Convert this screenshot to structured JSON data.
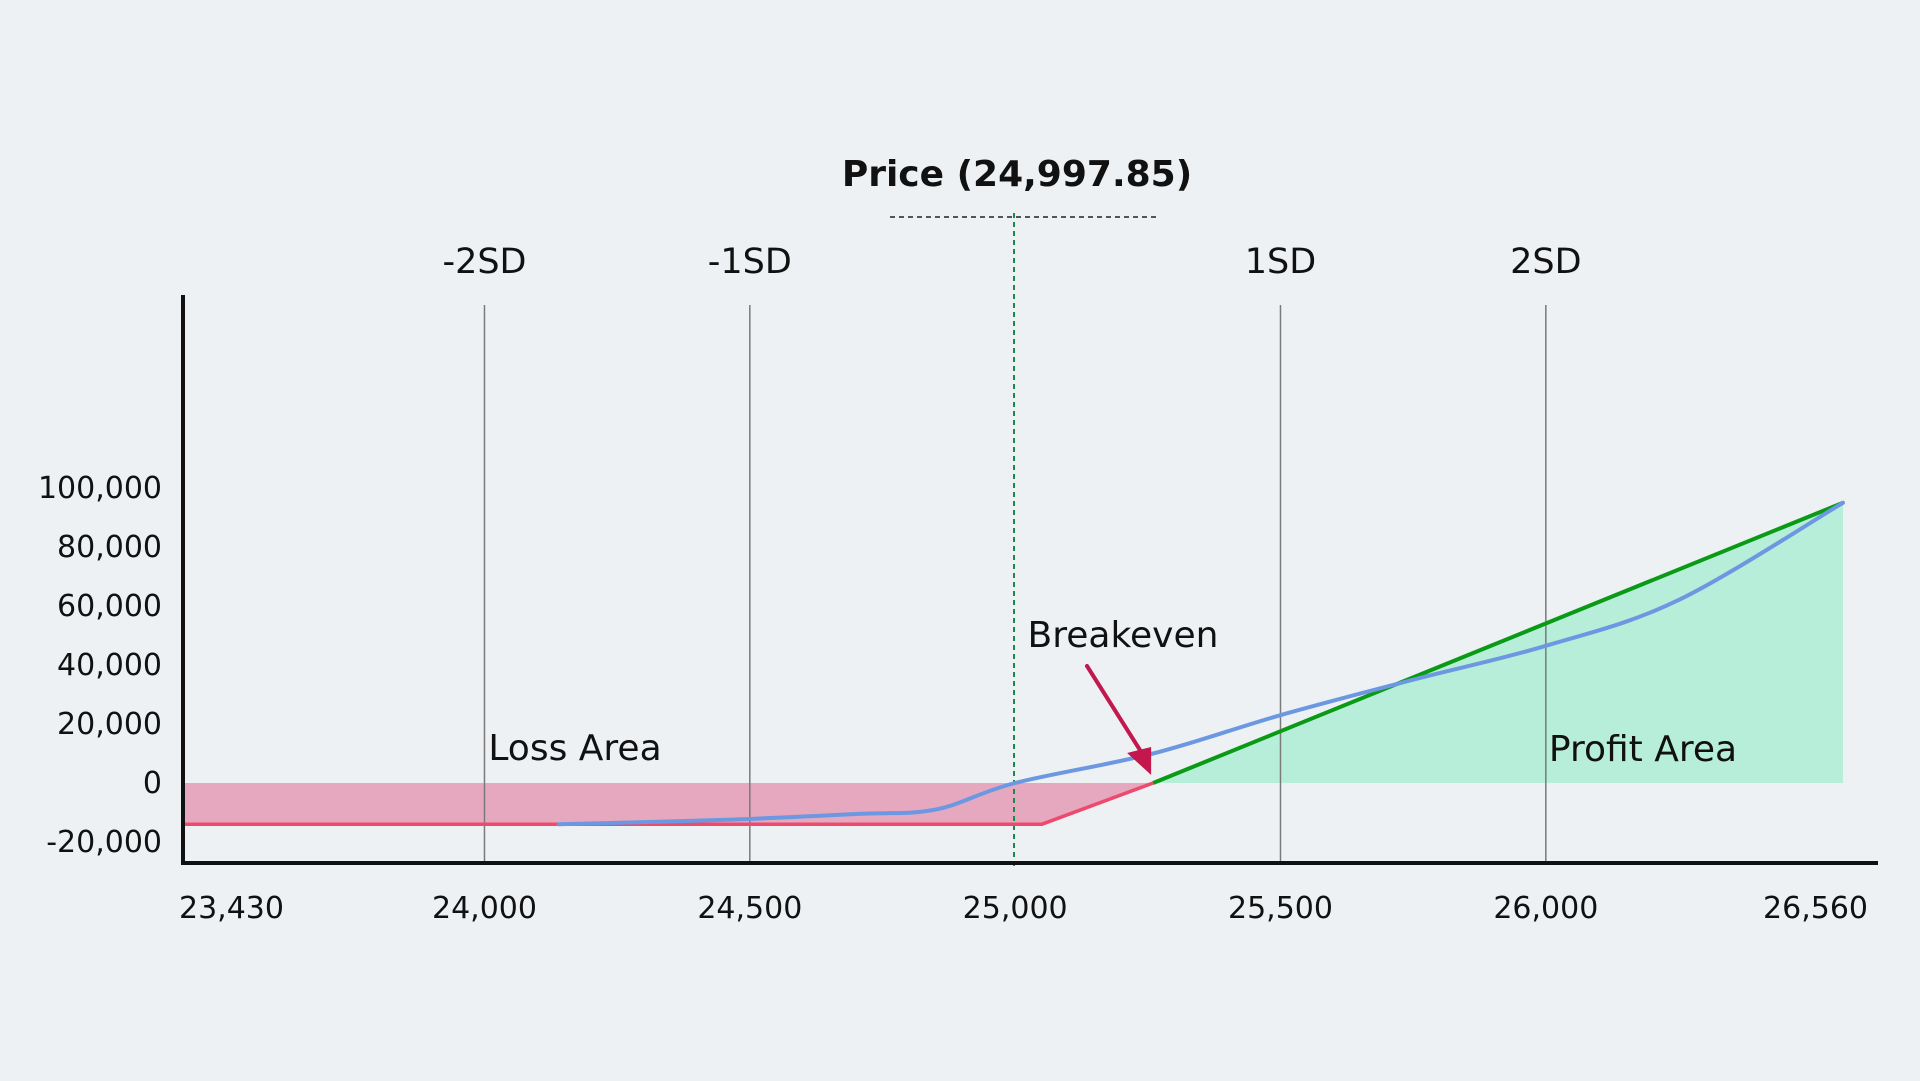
{
  "chart_data": {
    "type": "line",
    "title": "",
    "xlabel": "",
    "ylabel": "",
    "x_ticks": [
      {
        "value": 23430,
        "label": "23,430"
      },
      {
        "value": 24000,
        "label": "24,000"
      },
      {
        "value": 24500,
        "label": "24,500"
      },
      {
        "value": 25000,
        "label": "25,000"
      },
      {
        "value": 25500,
        "label": "25,500"
      },
      {
        "value": 26000,
        "label": "26,000"
      },
      {
        "value": 26560,
        "label": "26,560"
      }
    ],
    "y_ticks": [
      {
        "value": 100000,
        "label": "100,000"
      },
      {
        "value": 80000,
        "label": "80,000"
      },
      {
        "value": 60000,
        "label": "60,000"
      },
      {
        "value": 40000,
        "label": "40,000"
      },
      {
        "value": 20000,
        "label": "20,000"
      },
      {
        "value": 0,
        "label": "0"
      },
      {
        "value": -20000,
        "label": "-20,000"
      }
    ],
    "xlim": [
      23430,
      26560
    ],
    "ylim": [
      -20000,
      100000
    ],
    "sd_lines": [
      {
        "label": "-2SD",
        "x": 24000
      },
      {
        "label": "-1SD",
        "x": 24500
      },
      {
        "label": "1SD",
        "x": 25500
      },
      {
        "label": "2SD",
        "x": 26000
      }
    ],
    "price_marker": {
      "label": "Price (24,997.85)",
      "x": 24997.85
    },
    "breakeven": {
      "label": "Breakeven",
      "x": 25260,
      "y": 0
    },
    "annotations": {
      "loss_area": "Loss Area",
      "profit_area": "Profit Area"
    },
    "series": [
      {
        "role": "expiry-payoff",
        "points": [
          [
            23430,
            -14000
          ],
          [
            25050,
            -14000
          ],
          [
            25260,
            0
          ],
          [
            26560,
            95000
          ]
        ]
      },
      {
        "role": "current-payoff",
        "points": [
          [
            24140,
            -14000
          ],
          [
            24450,
            -12500
          ],
          [
            24700,
            -10500
          ],
          [
            24850,
            -9000
          ],
          [
            25000,
            0
          ],
          [
            25260,
            10000
          ],
          [
            25500,
            23000
          ],
          [
            25750,
            35000
          ],
          [
            26000,
            46500
          ],
          [
            26250,
            62000
          ],
          [
            26560,
            95000
          ]
        ]
      }
    ],
    "colors": {
      "axis": "#111111",
      "sd_line": "#7a7a7a",
      "loss_fill": "#e5a8bf",
      "loss_line": "#ee4a6e",
      "profit_fill": "#b6eed9",
      "profit_line": "#0a9a16",
      "current_line": "#6c98e2",
      "price_line": "#1a8a4a",
      "arrow": "#c2184e"
    }
  }
}
